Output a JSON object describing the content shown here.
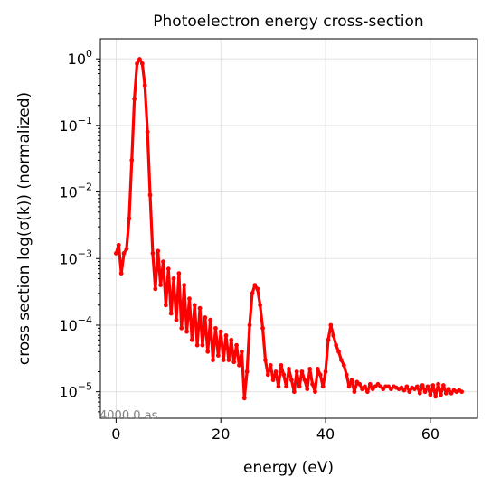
{
  "chart_data": {
    "type": "scatter",
    "title": "Photoelectron energy cross-section",
    "xlabel": "energy (eV)",
    "ylabel": "cross section log(σ(k)) (normalized)",
    "yscale": "log",
    "xlim": [
      -3,
      69
    ],
    "ylim": [
      4e-06,
      2
    ],
    "x_ticks": [
      0,
      20,
      40,
      60
    ],
    "x_tick_labels": [
      "0",
      "20",
      "40",
      "60"
    ],
    "y_ticks": [
      1e-05,
      0.0001,
      0.001,
      0.01,
      0.1,
      1
    ],
    "y_tick_labels": [
      {
        "base": "10",
        "exp": "−5"
      },
      {
        "base": "10",
        "exp": "−4"
      },
      {
        "base": "10",
        "exp": "−3"
      },
      {
        "base": "10",
        "exp": "−2"
      },
      {
        "base": "10",
        "exp": "−1"
      },
      {
        "base": "10",
        "exp": "0"
      }
    ],
    "grid": true,
    "annotation": "4000.0 as",
    "series_color": "#ff0000",
    "x": [
      0,
      0.5,
      1,
      1.5,
      2,
      2.5,
      3,
      3.5,
      4,
      4.5,
      5,
      5.5,
      6,
      6.5,
      7,
      7.5,
      8,
      8.5,
      9,
      9.5,
      10,
      10.5,
      11,
      11.5,
      12,
      12.5,
      13,
      13.5,
      14,
      14.5,
      15,
      15.5,
      16,
      16.5,
      17,
      17.5,
      18,
      18.5,
      19,
      19.5,
      20,
      20.5,
      21,
      21.5,
      22,
      22.5,
      23,
      23.5,
      24,
      24.5,
      25,
      25.5,
      26,
      26.5,
      27,
      27.5,
      28,
      28.5,
      29,
      29.5,
      30,
      30.5,
      31,
      31.5,
      32,
      32.5,
      33,
      33.5,
      34,
      34.5,
      35,
      35.5,
      36,
      36.5,
      37,
      37.5,
      38,
      38.5,
      39,
      39.5,
      40,
      40.5,
      41,
      41.5,
      42,
      42.5,
      43,
      43.5,
      44,
      44.5,
      45,
      45.5,
      46,
      46.5,
      47,
      47.5,
      48,
      48.5,
      49,
      49.5,
      50,
      50.5,
      51,
      51.5,
      52,
      52.5,
      53,
      53.5,
      54,
      54.5,
      55,
      55.5,
      56,
      56.5,
      57,
      57.5,
      58,
      58.5,
      59,
      59.5,
      60,
      60.5,
      61,
      61.5,
      62,
      62.5,
      63,
      63.5,
      64,
      64.5,
      65,
      65.5,
      66
    ],
    "values": [
      0.0012,
      0.0016,
      0.0006,
      0.0012,
      0.0014,
      0.004,
      0.03,
      0.25,
      0.85,
      0.99,
      0.85,
      0.4,
      0.08,
      0.009,
      0.0012,
      0.00035,
      0.0013,
      0.0004,
      0.0009,
      0.0002,
      0.0007,
      0.00015,
      0.0005,
      0.00012,
      0.0006,
      9e-05,
      0.0004,
      8e-05,
      0.00025,
      6e-05,
      0.0002,
      5e-05,
      0.00018,
      5e-05,
      0.00013,
      4e-05,
      0.00012,
      3e-05,
      9e-05,
      3.5e-05,
      8e-05,
      3e-05,
      7e-05,
      3e-05,
      6e-05,
      2.8e-05,
      5e-05,
      2.5e-05,
      4e-05,
      8e-06,
      2e-05,
      0.0001,
      0.0003,
      0.0004,
      0.00035,
      0.0002,
      9e-05,
      3e-05,
      1.8e-05,
      2.5e-05,
      1.5e-05,
      2e-05,
      1.2e-05,
      2.5e-05,
      1.8e-05,
      1.2e-05,
      2.2e-05,
      1.5e-05,
      1e-05,
      2e-05,
      1.2e-05,
      2e-05,
      1.5e-05,
      1.1e-05,
      2.2e-05,
      1.3e-05,
      1e-05,
      2.2e-05,
      1.8e-05,
      1.2e-05,
      2e-05,
      6e-05,
      0.0001,
      7e-05,
      5e-05,
      4e-05,
      3e-05,
      2.5e-05,
      1.8e-05,
      1.2e-05,
      1.5e-05,
      1e-05,
      1.4e-05,
      1.3e-05,
      1.1e-05,
      1.2e-05,
      1e-05,
      1.3e-05,
      1.1e-05,
      1.2e-05,
      1.3e-05,
      1.2e-05,
      1.1e-05,
      1.2e-05,
      1.2e-05,
      1.1e-05,
      1.2e-05,
      1.15e-05,
      1.1e-05,
      1.15e-05,
      1.05e-05,
      1.2e-05,
      1e-05,
      1.15e-05,
      1.1e-05,
      1.2e-05,
      9.5e-06,
      1.25e-05,
      1e-05,
      1.2e-05,
      9e-06,
      1.25e-05,
      8.5e-06,
      1.3e-05,
      9e-06,
      1.25e-05,
      9.5e-06,
      1.1e-05,
      9.5e-06,
      1.05e-05,
      1e-05,
      1.05e-05,
      1e-05
    ]
  }
}
